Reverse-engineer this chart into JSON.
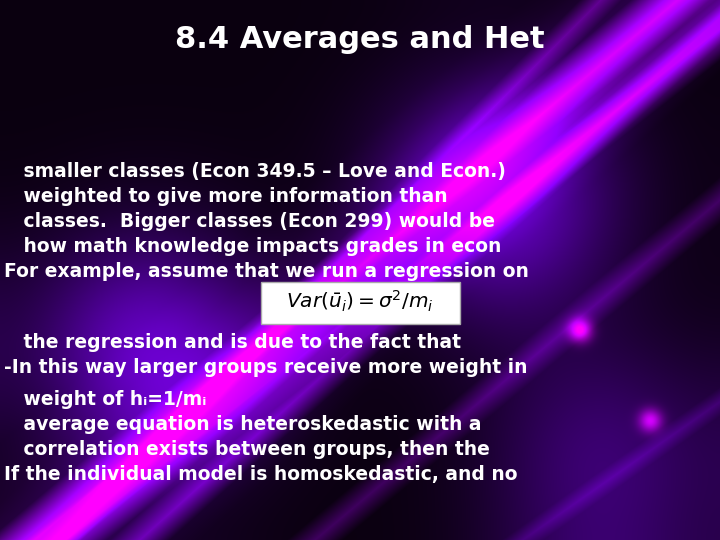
{
  "title": "8.4 Averages and Het",
  "title_fontsize": 22,
  "title_color": "#ffffff",
  "body_fontsize": 13.5,
  "body_color": "#ffffff",
  "line1": "If the individual model is homoskedastic, and no",
  "line2": "   correlation exists between groups, then the",
  "line3": "   average equation is heteroskedastic with a",
  "line4": "   weight of hᵢ=1/mᵢ",
  "line5": "-In this way larger groups receive more weight in",
  "line6": "   the regression and is due to the fact that",
  "formula_text": "$Var(\\bar{u}_i) = \\sigma^2 / m_i$",
  "line7": "For example, assume that we run a regression on",
  "line8": "   how math knowledge impacts grades in econ",
  "line9": "   classes.  Bigger classes (Econ 299) would be",
  "line10": "   weighted to give more information than",
  "line11": "   smaller classes (Econ 349.5 – Love and Econ.)"
}
